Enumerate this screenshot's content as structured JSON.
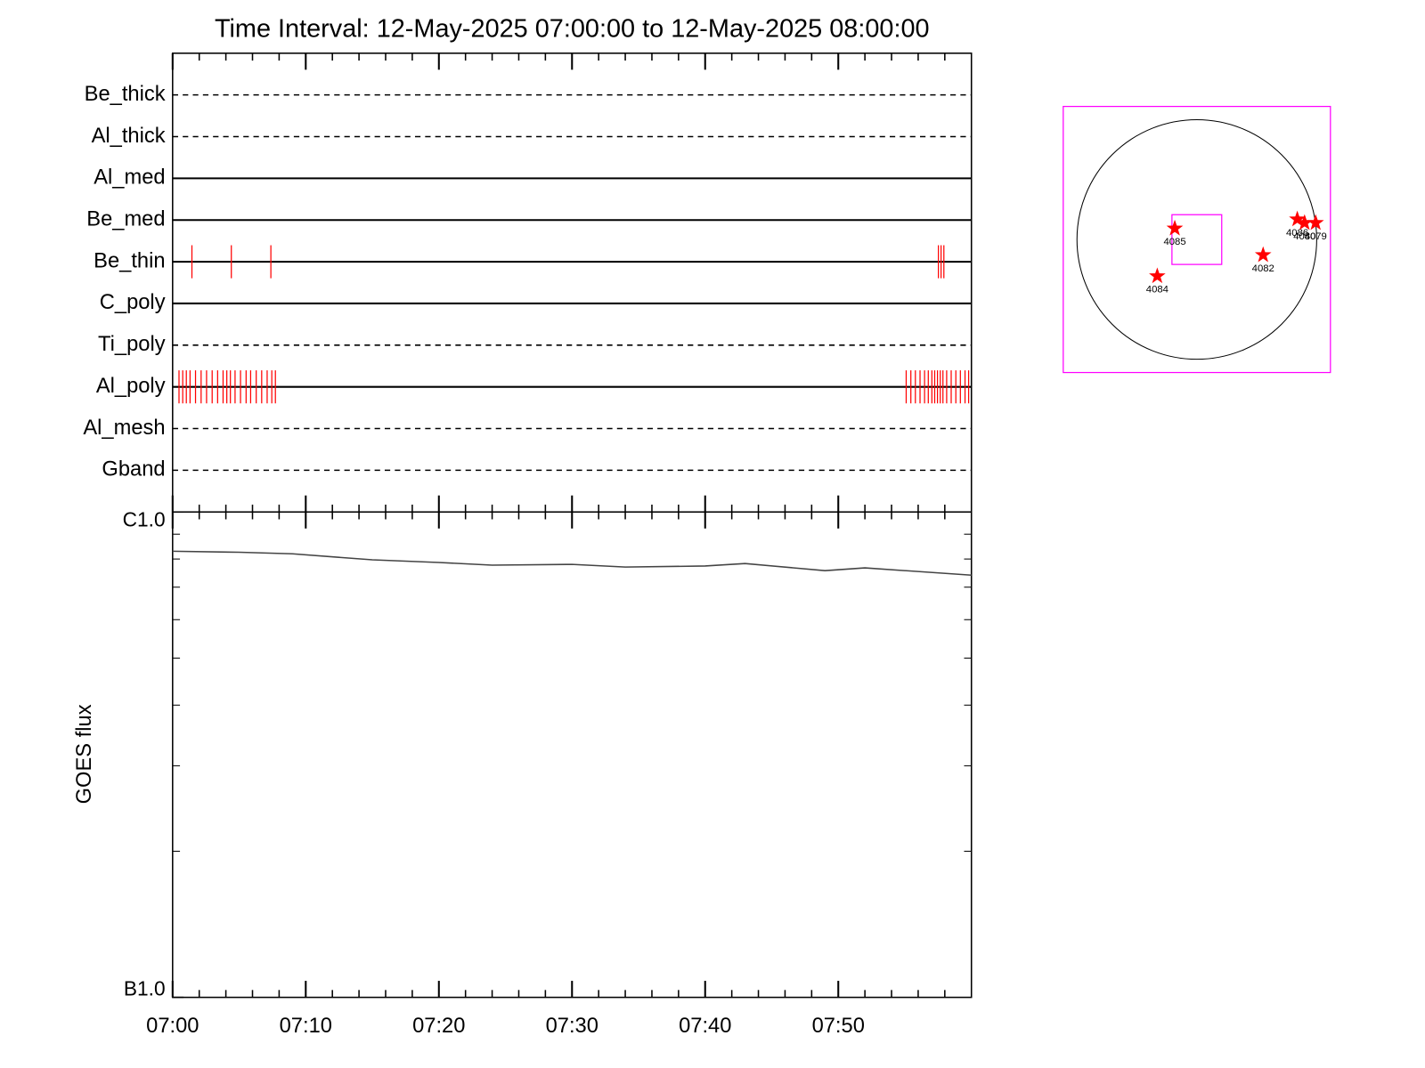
{
  "chart_data": [
    {
      "type": "timeline",
      "title": "Time Interval: 12-May-2025 07:00:00 to 12-May-2025 08:00:00",
      "xlim": [
        0,
        60
      ],
      "xticks": [
        0,
        10,
        20,
        30,
        40,
        50
      ],
      "minor_xticks": [
        2,
        4,
        6,
        8,
        12,
        14,
        16,
        18,
        22,
        24,
        26,
        28,
        32,
        34,
        36,
        38,
        42,
        44,
        46,
        48,
        52,
        54,
        56,
        58
      ],
      "exposure_color": "#ff0000",
      "filters": [
        {
          "name": "Be_thick",
          "line": "dashed",
          "exposures": []
        },
        {
          "name": "Al_thick",
          "line": "dashed",
          "exposures": []
        },
        {
          "name": "Al_med",
          "line": "solid",
          "exposures": []
        },
        {
          "name": "Be_med",
          "line": "solid",
          "exposures": []
        },
        {
          "name": "Be_thin",
          "line": "solid",
          "exposures": [
            1.45,
            4.41,
            7.38,
            57.52,
            57.72,
            57.93
          ]
        },
        {
          "name": "C_poly",
          "line": "solid",
          "exposures": []
        },
        {
          "name": "Ti_poly",
          "line": "dashed",
          "exposures": []
        },
        {
          "name": "Al_poly",
          "line": "solid",
          "exposures": [
            0.48,
            0.76,
            1.03,
            1.31,
            1.72,
            2.14,
            2.55,
            2.97,
            3.38,
            3.79,
            4.07,
            4.34,
            4.69,
            5.1,
            5.52,
            5.86,
            6.28,
            6.69,
            7.1,
            7.45,
            7.72,
            55.1,
            55.45,
            55.79,
            56.14,
            56.48,
            56.76,
            57.03,
            57.24,
            57.45,
            57.66,
            57.86,
            58.14,
            58.48,
            58.83,
            59.17,
            59.52,
            59.79
          ]
        },
        {
          "name": "Al_mesh",
          "line": "dashed",
          "exposures": []
        },
        {
          "name": "Gband",
          "line": "dashed",
          "exposures": []
        }
      ]
    },
    {
      "type": "line",
      "y_label": "GOES flux",
      "ylog": true,
      "xlim": [
        0,
        60
      ],
      "xticks": [
        {
          "value": 0,
          "label": "07:00"
        },
        {
          "value": 10,
          "label": "07:10"
        },
        {
          "value": 20,
          "label": "07:20"
        },
        {
          "value": 30,
          "label": "07:30"
        },
        {
          "value": 40,
          "label": "07:40"
        },
        {
          "value": 50,
          "label": "07:50"
        }
      ],
      "minor_xticks": [
        2,
        4,
        6,
        8,
        12,
        14,
        16,
        18,
        22,
        24,
        26,
        28,
        32,
        34,
        36,
        38,
        42,
        44,
        46,
        48,
        52,
        54,
        56,
        58
      ],
      "ylim": [
        1e-07,
        1e-06
      ],
      "yticks": [
        {
          "value": 1e-06,
          "label": "C1.0"
        },
        {
          "value": 1e-07,
          "label": "B1.0"
        }
      ],
      "minor_yticks": [
        2e-07,
        3e-07,
        4e-07,
        5e-07,
        6e-07,
        7e-07,
        8e-07,
        9e-07
      ],
      "color": "#444444",
      "x": [
        0,
        5,
        9,
        15,
        20,
        24,
        30,
        34,
        40,
        43,
        49,
        52,
        60
      ],
      "values": [
        8.3e-07,
        8.26e-07,
        8.2e-07,
        7.97e-07,
        7.87e-07,
        7.77e-07,
        7.8e-07,
        7.7e-07,
        7.74e-07,
        7.83e-07,
        7.57e-07,
        7.67e-07,
        7.41e-07
      ]
    },
    {
      "type": "map",
      "xlim": [
        -1060,
        1060
      ],
      "ylim": [
        -1060,
        1060
      ],
      "limb_radius": 951,
      "fov": {
        "center": [
          0,
          0
        ],
        "size": [
          395,
          395
        ]
      },
      "box_color": "#ff00ff",
      "marker_color": "#ff0000",
      "regions": [
        {
          "label": "4085",
          "x": -175,
          "y": 88
        },
        {
          "label": "4082",
          "x": 526,
          "y": -124
        },
        {
          "label": "4084",
          "x": -314,
          "y": -292
        },
        {
          "label": "4086",
          "x": 797,
          "y": 161
        },
        {
          "label": "4080",
          "x": 855,
          "y": 132
        },
        {
          "label": "4079",
          "x": 943,
          "y": 132
        }
      ]
    }
  ]
}
